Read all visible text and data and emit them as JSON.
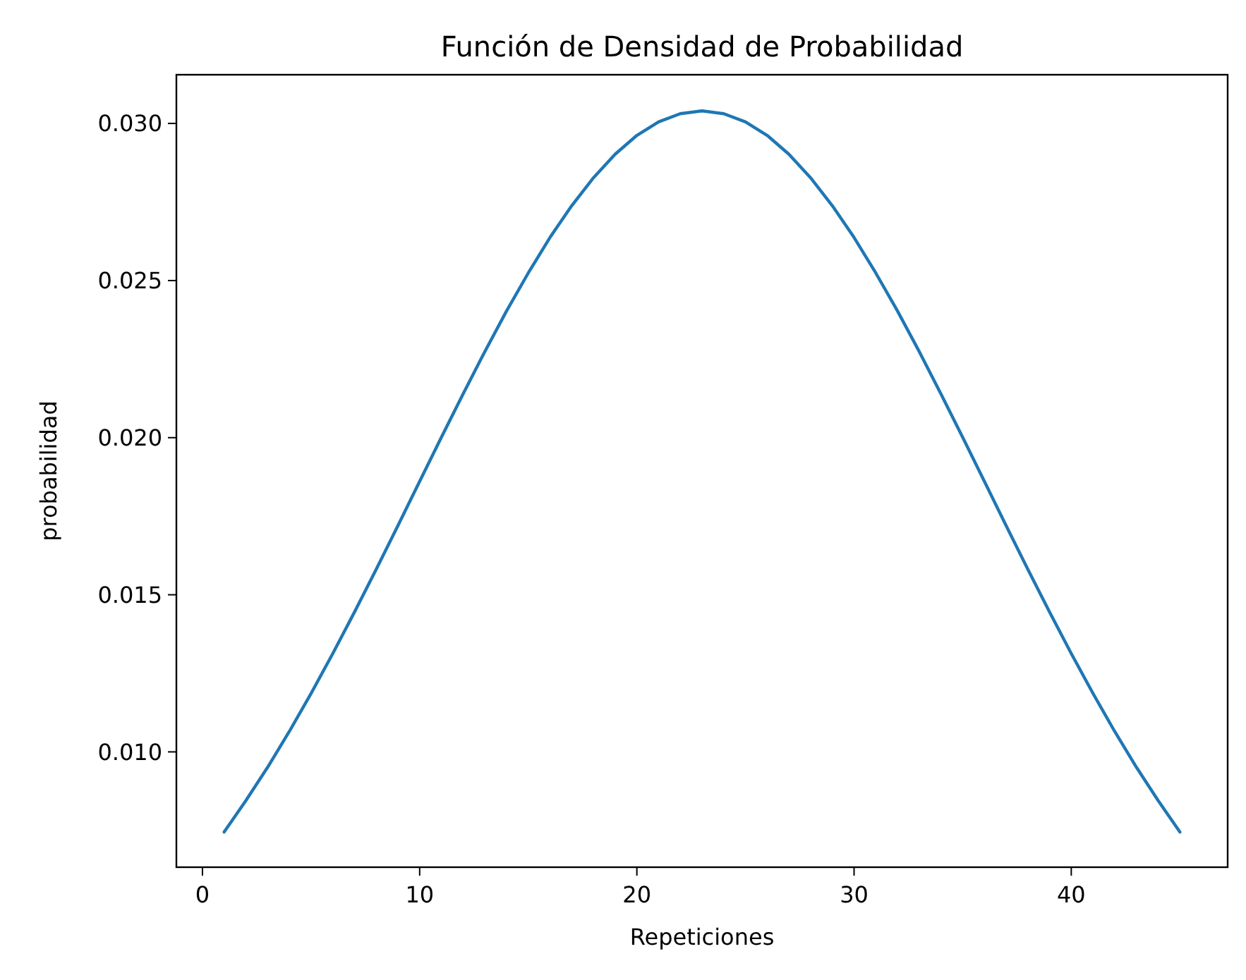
{
  "chart_data": {
    "type": "line",
    "title": "Función de Densidad de Probabilidad",
    "xlabel": "Repeticiones",
    "ylabel": "probabilidad",
    "x": [
      1,
      2,
      3,
      4,
      5,
      6,
      7,
      8,
      9,
      10,
      11,
      12,
      13,
      14,
      15,
      16,
      17,
      18,
      19,
      20,
      21,
      22,
      23,
      24,
      25,
      26,
      27,
      28,
      29,
      30,
      31,
      32,
      33,
      34,
      35,
      36,
      37,
      38,
      39,
      40,
      41,
      42,
      43,
      44,
      45
    ],
    "series": [
      {
        "color": "#1f77b4",
        "values": [
          0.00745,
          0.00845,
          0.00951,
          0.01065,
          0.01186,
          0.01313,
          0.01445,
          0.01581,
          0.0172,
          0.01861,
          0.02001,
          0.02139,
          0.02274,
          0.02403,
          0.02524,
          0.02637,
          0.02738,
          0.02827,
          0.02902,
          0.02962,
          0.03005,
          0.03031,
          0.0304,
          0.03031,
          0.03005,
          0.02962,
          0.02902,
          0.02827,
          0.02738,
          0.02637,
          0.02524,
          0.02403,
          0.02274,
          0.02139,
          0.02001,
          0.01861,
          0.0172,
          0.01581,
          0.01445,
          0.01313,
          0.01186,
          0.01065,
          0.00951,
          0.00845,
          0.00745
        ]
      }
    ],
    "xlim": [
      -1.2,
      47.2
    ],
    "xticks": [
      0,
      10,
      20,
      30,
      40
    ],
    "ylim": [
      0.00633,
      0.03155
    ],
    "yticks": [
      {
        "value": 0.01,
        "label": "0.010"
      },
      {
        "value": 0.015,
        "label": "0.015"
      },
      {
        "value": 0.02,
        "label": "0.020"
      },
      {
        "value": 0.025,
        "label": "0.025"
      },
      {
        "value": 0.03,
        "label": "0.030"
      }
    ]
  }
}
